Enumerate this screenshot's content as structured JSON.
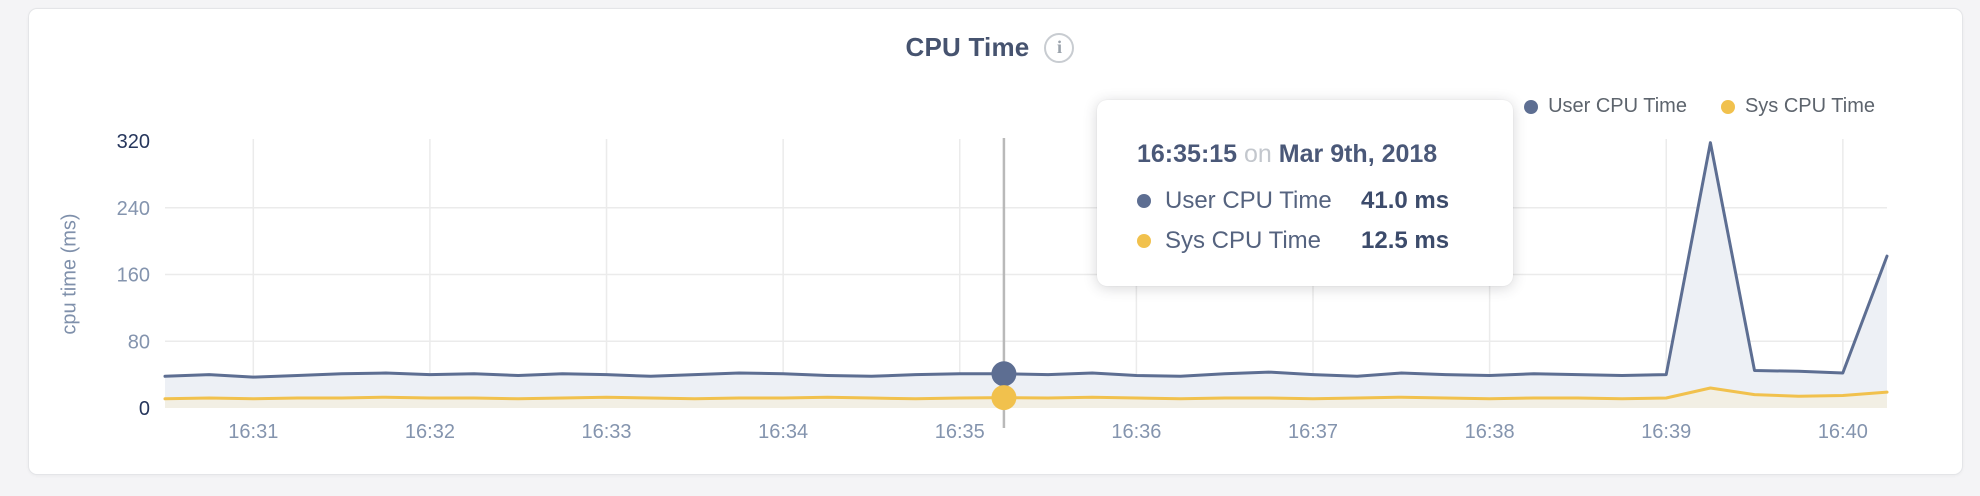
{
  "header": {
    "title": "CPU Time",
    "info_icon_glyph": "i"
  },
  "legend": {
    "items": [
      {
        "label": "User CPU Time",
        "color": "#5d6e92"
      },
      {
        "label": "Sys CPU Time",
        "color": "#f1c14d"
      }
    ]
  },
  "tooltip": {
    "time": "16:35:15",
    "connector": "on",
    "date": "Mar 9th, 2018",
    "rows": [
      {
        "label": "User CPU Time",
        "value": "41.0 ms",
        "color": "#5d6e92"
      },
      {
        "label": "Sys CPU Time",
        "value": "12.5 ms",
        "color": "#f1c14d"
      }
    ]
  },
  "chart_data": {
    "type": "area",
    "title": "CPU Time",
    "ylabel": "cpu time (ms)",
    "xlabel": "",
    "ylim": [
      0,
      320
    ],
    "y_ticks": [
      0,
      80,
      160,
      240,
      320
    ],
    "x_tick_labels": [
      "16:31",
      "16:32",
      "16:33",
      "16:34",
      "16:35",
      "16:36",
      "16:37",
      "16:38",
      "16:39",
      "16:40"
    ],
    "x_tick_point_indices": [
      2,
      6,
      10,
      14,
      18,
      22,
      26,
      30,
      34,
      38
    ],
    "point_interval_seconds": 15,
    "first_point_time": "16:30:30",
    "grid": true,
    "legend_position": "top-right",
    "hover": {
      "point_index": 19,
      "time": "16:35:15",
      "date": "Mar 9th, 2018",
      "user_cpu_ms": 41.0,
      "sys_cpu_ms": 12.5
    },
    "series": [
      {
        "name": "User CPU Time",
        "color": "#5d6e92",
        "fill": "#edf0f5",
        "values": [
          38,
          40,
          37,
          39,
          41,
          42,
          40,
          41,
          39,
          41,
          40,
          38,
          40,
          42,
          41,
          39,
          38,
          40,
          41,
          41,
          40,
          42,
          39,
          38,
          41,
          43,
          40,
          38,
          42,
          40,
          39,
          41,
          40,
          39,
          40,
          318,
          45,
          44,
          42,
          182
        ]
      },
      {
        "name": "Sys CPU Time",
        "color": "#f1c14d",
        "fill": "#f2efe4",
        "values": [
          11,
          12,
          11,
          12,
          12,
          13,
          12,
          12,
          11,
          12,
          13,
          12,
          11,
          12,
          12,
          13,
          12,
          11,
          12,
          12.5,
          12,
          13,
          12,
          11,
          12,
          12,
          11,
          12,
          13,
          12,
          11,
          12,
          12,
          11,
          12,
          24,
          16,
          14,
          15,
          19
        ]
      }
    ],
    "axis_colors": {
      "tick_label": "#8494ae",
      "tick_label_emphasis": "#26365c",
      "gridline": "#ebebeb",
      "crosshair": "#b9b9b9"
    }
  }
}
